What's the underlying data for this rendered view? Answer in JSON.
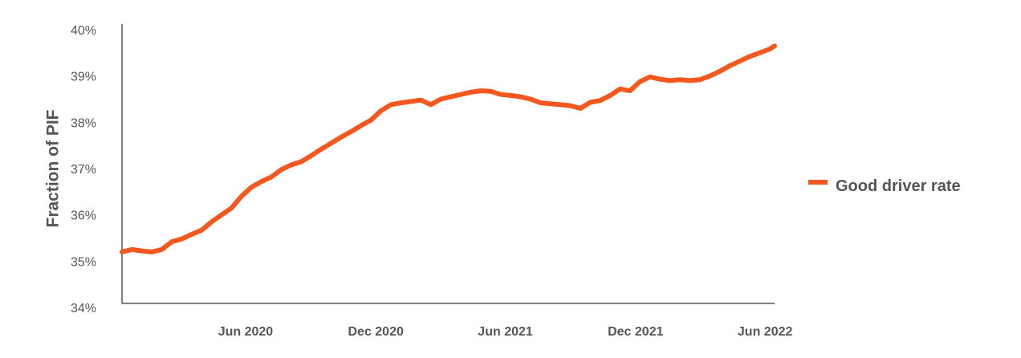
{
  "chart_data": {
    "type": "line",
    "title": "",
    "xlabel": "",
    "ylabel": "Fraction of PIF",
    "y_ticks": [
      "34%",
      "35%",
      "36%",
      "37%",
      "38%",
      "39%",
      "40%"
    ],
    "x_ticks": [
      "Jun 2020",
      "Dec 2020",
      "Jun 2021",
      "Dec 2021",
      "Jun 2022"
    ],
    "ylim": [
      34,
      40
    ],
    "xlim": [
      "2019-12-16",
      "2022-06-20"
    ],
    "grid": false,
    "legend_position": "right",
    "colors": {
      "series": "#F4581E",
      "axis": "#555555",
      "text": "#555555"
    },
    "series": [
      {
        "name": "Good driver rate",
        "x": [
          "2019-12-16",
          "2019-12-30",
          "2020-01-13",
          "2020-01-27",
          "2020-02-10",
          "2020-02-24",
          "2020-03-09",
          "2020-03-23",
          "2020-04-06",
          "2020-04-20",
          "2020-05-04",
          "2020-05-18",
          "2020-06-01",
          "2020-06-15",
          "2020-06-29",
          "2020-07-13",
          "2020-07-27",
          "2020-08-10",
          "2020-08-24",
          "2020-09-07",
          "2020-09-21",
          "2020-10-05",
          "2020-10-19",
          "2020-11-02",
          "2020-11-16",
          "2020-11-30",
          "2020-12-14",
          "2020-12-28",
          "2021-01-11",
          "2021-01-25",
          "2021-02-08",
          "2021-02-22",
          "2021-03-08",
          "2021-03-22",
          "2021-04-05",
          "2021-04-19",
          "2021-05-03",
          "2021-05-17",
          "2021-05-31",
          "2021-06-14",
          "2021-06-28",
          "2021-07-12",
          "2021-07-26",
          "2021-08-09",
          "2021-08-23",
          "2021-09-06",
          "2021-09-20",
          "2021-10-04",
          "2021-10-18",
          "2021-11-01",
          "2021-11-15",
          "2021-11-29",
          "2021-12-13",
          "2021-12-27",
          "2022-01-10",
          "2022-01-24",
          "2022-02-07",
          "2022-02-21",
          "2022-03-07",
          "2022-03-21",
          "2022-04-04",
          "2022-04-18",
          "2022-05-02",
          "2022-05-16",
          "2022-05-30",
          "2022-06-13",
          "2022-06-20"
        ],
        "values": [
          35.2,
          35.25,
          35.22,
          35.2,
          35.25,
          35.42,
          35.48,
          35.58,
          35.67,
          35.85,
          36.0,
          36.15,
          36.4,
          36.6,
          36.72,
          36.82,
          36.98,
          37.08,
          37.15,
          37.28,
          37.42,
          37.55,
          37.68,
          37.8,
          37.93,
          38.05,
          38.25,
          38.38,
          38.42,
          38.45,
          38.48,
          38.38,
          38.5,
          38.55,
          38.6,
          38.65,
          38.68,
          38.67,
          38.6,
          38.58,
          38.55,
          38.5,
          38.42,
          38.4,
          38.38,
          38.36,
          38.3,
          38.43,
          38.47,
          38.58,
          38.72,
          38.68,
          38.88,
          38.98,
          38.93,
          38.9,
          38.92,
          38.9,
          38.92,
          39.0,
          39.1,
          39.22,
          39.32,
          39.42,
          39.5,
          39.58,
          39.65
        ]
      }
    ]
  }
}
